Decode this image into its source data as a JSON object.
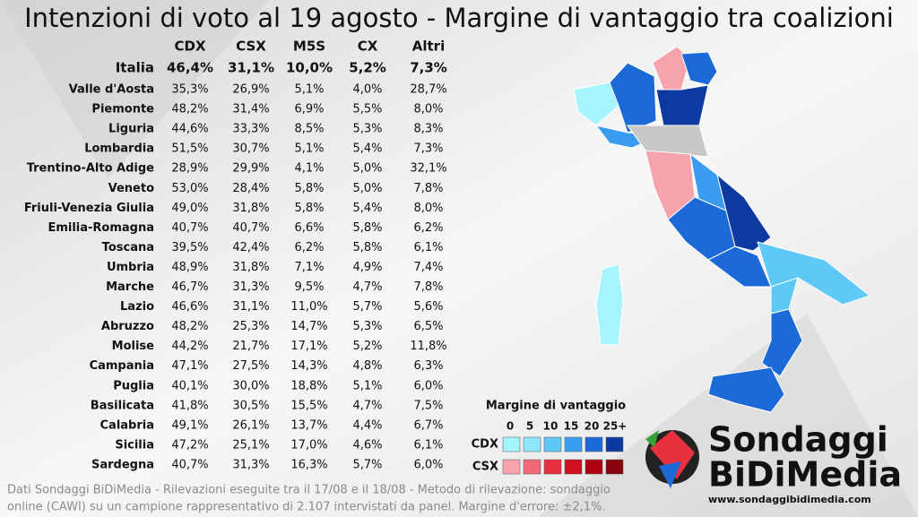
{
  "title": "Intenzioni di voto al 19 agosto - Margine di vantaggio tra coalizioni",
  "table": {
    "header": [
      "CDX",
      "CSX",
      "M5S",
      "CX",
      "Altri"
    ],
    "rows": [
      [
        "Italia",
        "46,4%",
        "31,1%",
        "10,0%",
        "5,2%",
        "7,3%"
      ],
      [
        "Valle d'Aosta",
        "35,3%",
        "26,9%",
        "5,1%",
        "4,0%",
        "28,7%"
      ],
      [
        "Piemonte",
        "48,2%",
        "31,4%",
        "6,9%",
        "5,5%",
        "8,0%"
      ],
      [
        "Liguria",
        "44,6%",
        "33,3%",
        "8,5%",
        "5,3%",
        "8,3%"
      ],
      [
        "Lombardia",
        "51,5%",
        "30,7%",
        "5,1%",
        "5,4%",
        "7,3%"
      ],
      [
        "Trentino-Alto Adige",
        "28,9%",
        "29,9%",
        "4,1%",
        "5,0%",
        "32,1%"
      ],
      [
        "Veneto",
        "53,0%",
        "28,4%",
        "5,8%",
        "5,0%",
        "7,8%"
      ],
      [
        "Friuli-Venezia Giulia",
        "49,0%",
        "31,8%",
        "5,8%",
        "5,4%",
        "8,0%"
      ],
      [
        "Emilia-Romagna",
        "40,7%",
        "40,7%",
        "6,6%",
        "5,8%",
        "6,2%"
      ],
      [
        "Toscana",
        "39,5%",
        "42,4%",
        "6,2%",
        "5,8%",
        "6,1%"
      ],
      [
        "Umbria",
        "48,9%",
        "31,8%",
        "7,1%",
        "4,9%",
        "7,4%"
      ],
      [
        "Marche",
        "46,7%",
        "31,3%",
        "9,5%",
        "4,7%",
        "7,8%"
      ],
      [
        "Lazio",
        "46,6%",
        "31,1%",
        "11,0%",
        "5,7%",
        "5,6%"
      ],
      [
        "Abruzzo",
        "48,2%",
        "25,3%",
        "14,7%",
        "5,3%",
        "6,5%"
      ],
      [
        "Molise",
        "44,2%",
        "21,7%",
        "17,1%",
        "5,2%",
        "11,8%"
      ],
      [
        "Campania",
        "47,1%",
        "27,5%",
        "14,3%",
        "4,8%",
        "6,3%"
      ],
      [
        "Puglia",
        "40,1%",
        "30,0%",
        "18,8%",
        "5,1%",
        "6,0%"
      ],
      [
        "Basilicata",
        "41,8%",
        "30,5%",
        "15,5%",
        "4,7%",
        "7,5%"
      ],
      [
        "Calabria",
        "49,1%",
        "26,1%",
        "13,7%",
        "4,4%",
        "6,7%"
      ],
      [
        "Sicilia",
        "47,2%",
        "25,1%",
        "17,0%",
        "4,6%",
        "6,1%"
      ],
      [
        "Sardegna",
        "40,7%",
        "31,3%",
        "16,3%",
        "5,7%",
        "6,0%"
      ]
    ]
  },
  "legend": {
    "title": "Margine di vantaggio",
    "labels": [
      "0",
      "5",
      "10",
      "15",
      "20",
      "25+"
    ],
    "rows": [
      {
        "name": "CDX",
        "colors": [
          "#a6f4ff",
          "#8ee6fb",
          "#5ec8f6",
          "#3a9cf0",
          "#1c6ad8",
          "#0d3aa0"
        ]
      },
      {
        "name": "CSX",
        "colors": [
          "#f7a3ad",
          "#f26a78",
          "#e8303f",
          "#d0101e",
          "#b00010",
          "#8a000b"
        ]
      }
    ]
  },
  "logo": {
    "line1": "Sondaggi",
    "line2": "BiDiMedia",
    "url": "www.sondaggibidimedia.com"
  },
  "footer": [
    "Dati Sondaggi BiDiMedia - Rilevazioni eseguite tra il 17/08 e il 18/08 - Metodo di rilevazione: sondaggio",
    "online (CAWI) su un campione rappresentativo di 2.107 intervistati da panel. Margine d'errore: ±2,1%."
  ]
}
